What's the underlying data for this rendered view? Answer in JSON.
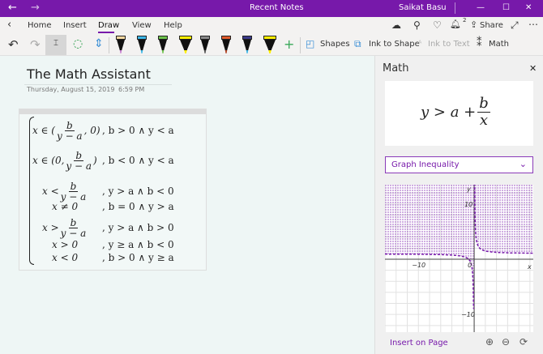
{
  "titlebar": {
    "title": "Recent Notes",
    "user": "Saikat Basu"
  },
  "tabs": [
    "Home",
    "Insert",
    "Draw",
    "View",
    "Help"
  ],
  "active_tab": "Draw",
  "tab_actions": {
    "share": "Share",
    "notification_count": "2"
  },
  "toolbar": {
    "shapes": "Shapes",
    "ink_to_shape": "Ink to Shape",
    "ink_to_text": "Ink to Text",
    "math": "Math",
    "pens": [
      {
        "cap": "#f7d8a0",
        "tip": "#c77fd0",
        "kind": "marker"
      },
      {
        "cap": "#3ab5e6",
        "tip": "#3ab5e6",
        "kind": "pen"
      },
      {
        "cap": "#6cc24a",
        "tip": "#6cc24a",
        "kind": "pen"
      },
      {
        "cap": "#ffef00",
        "tip": "#ffef00",
        "kind": "highlighter"
      },
      {
        "cap": "#888888",
        "tip": "#555555",
        "kind": "pen"
      },
      {
        "cap": "#e05a2b",
        "tip": "#b04020",
        "kind": "pen"
      },
      {
        "cap": "#3a3a8a",
        "tip": "#3ab5e6",
        "kind": "pen"
      },
      {
        "cap": "#ffef00",
        "tip": "#ffef00",
        "kind": "highlighter"
      }
    ]
  },
  "page": {
    "title": "The Math Assistant",
    "date": "Thursday, August 15, 2019",
    "time": "6:59 PM"
  },
  "math": {
    "rows": [
      {
        "pre": "x ∈ (",
        "num": "b",
        "den": "y − a",
        "post": ", 0)",
        "cond": ",   b > 0 ∧ y < a"
      },
      {
        "pre": "x ∈ (0, ",
        "num": "b",
        "den": "y − a",
        "post": ")",
        "cond": ",   b < 0 ∧ y < a"
      },
      {
        "pre": "x < ",
        "num": "b",
        "den": "y − a",
        "post": "",
        "cond": ",   y > a ∧ b < 0"
      },
      {
        "pre": "x ≠ 0",
        "cond": ",   b = 0 ∧ y > a"
      },
      {
        "pre": "x > ",
        "num": "b",
        "den": "y − a",
        "post": "",
        "cond": ",   y > a ∧ b > 0"
      },
      {
        "pre": "x > 0",
        "cond": ",   y ≥ a ∧ b < 0"
      },
      {
        "pre": "x < 0",
        "cond": ",   b > 0 ∧ y ≥ a"
      }
    ]
  },
  "panel": {
    "title": "Math",
    "expression": {
      "lhs": "y > a +",
      "num": "b",
      "den": "x"
    },
    "dropdown": "Graph Inequality",
    "insert": "Insert on Page"
  },
  "graph": {
    "xlim": [
      -16,
      10.6
    ],
    "ylim": [
      -13.2,
      13.5
    ],
    "a": 1,
    "b": 1,
    "xticks": [
      "−10",
      "0"
    ],
    "yticks": [
      "10",
      "−10"
    ],
    "xlabel": "x",
    "ylabel": "y",
    "color": "#7719aa",
    "shade": "above"
  }
}
